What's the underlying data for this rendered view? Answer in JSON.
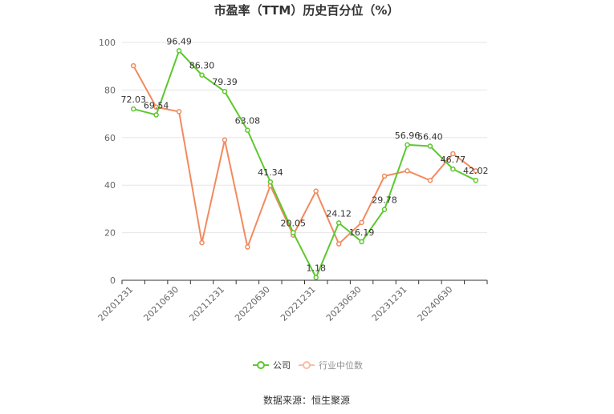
{
  "chart_data": {
    "type": "line",
    "title": "市盈率（TTM）历史百分位（%）",
    "xlabel": "",
    "ylabel": "",
    "ylim": [
      0,
      100
    ],
    "yticks": [
      0,
      20,
      40,
      60,
      80,
      100
    ],
    "grid": true,
    "legend_position": "bottom",
    "categories": [
      "20201231",
      "20210331",
      "20210630",
      "20210930",
      "20211231",
      "20220331",
      "20220630",
      "20220930",
      "20221231",
      "20230331",
      "20230630",
      "20230930",
      "20231231",
      "20240331",
      "20240630",
      "20240930"
    ],
    "tick_labels": [
      "20201231",
      "20210630",
      "20211231",
      "20220630",
      "20221231",
      "20230630",
      "20231231",
      "20240630"
    ],
    "series": [
      {
        "name": "公司",
        "color": "#5cc82e",
        "values": [
          72.03,
          69.54,
          96.49,
          86.3,
          79.39,
          63.08,
          41.34,
          20.05,
          1.18,
          24.12,
          16.19,
          29.78,
          56.96,
          56.4,
          46.77,
          42.02
        ],
        "labels": [
          "72.03",
          "69.54",
          "96.49",
          "86.30",
          "79.39",
          "63.08",
          "41.34",
          "20.05",
          "1.18",
          "24.12",
          "16.19",
          "29.78",
          "56.96",
          "56.40",
          "46.77",
          "42.02"
        ]
      },
      {
        "name": "行业中位数",
        "color": "#f28a5e",
        "values": [
          90.2,
          72.8,
          70.9,
          15.8,
          59.0,
          14.0,
          39.8,
          19.0,
          37.5,
          15.3,
          24.3,
          43.8,
          46.0,
          42.0,
          53.2,
          46.0
        ]
      }
    ],
    "source": "数据来源：恒生聚源"
  }
}
